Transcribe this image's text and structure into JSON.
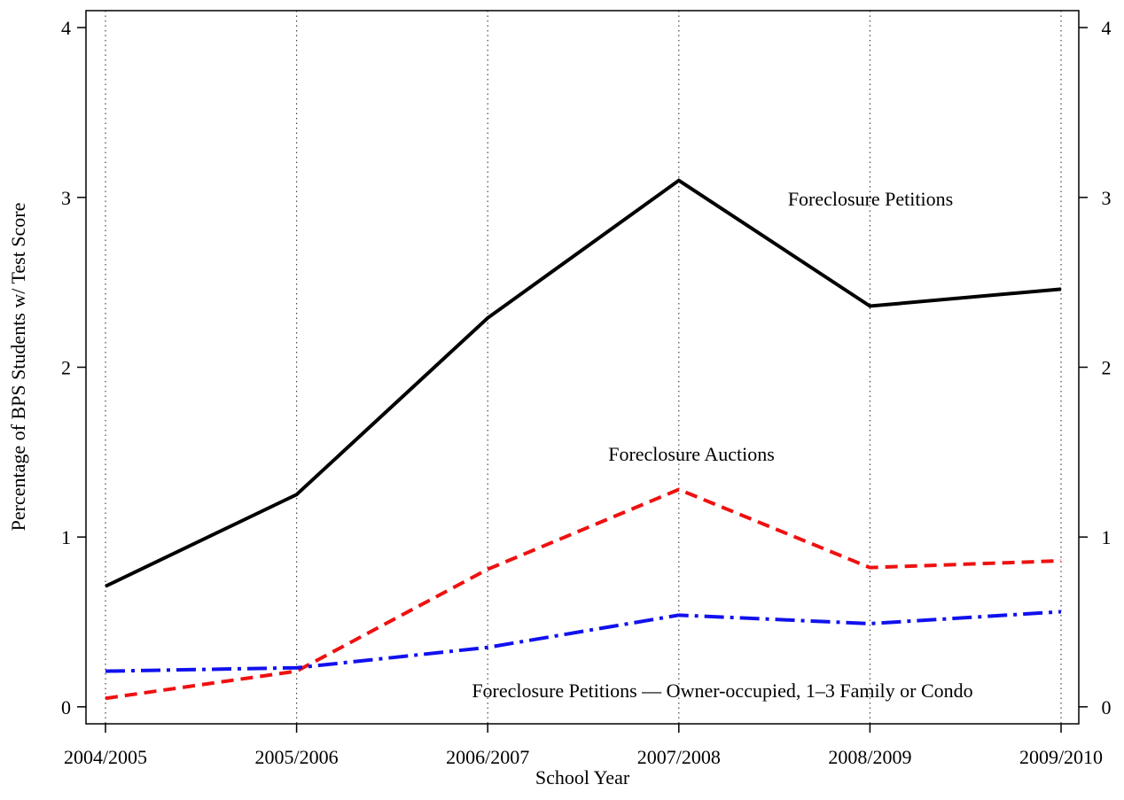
{
  "chart_data": {
    "type": "line",
    "xlabel": "School Year",
    "ylabel": "Percentage of BPS Students w/ Test Score",
    "categories": [
      "2004/2005",
      "2005/2006",
      "2006/2007",
      "2007/2008",
      "2008/2009",
      "2009/2010"
    ],
    "series": [
      {
        "name": "Foreclosure Petitions",
        "color": "#000000",
        "style": "solid",
        "values": [
          0.71,
          1.25,
          2.29,
          3.1,
          2.36,
          2.46
        ]
      },
      {
        "name": "Foreclosure Auctions",
        "color": "#ee1111",
        "style": "dashed",
        "values": [
          0.05,
          0.21,
          0.81,
          1.28,
          0.82,
          0.86
        ]
      },
      {
        "name": "Foreclosure Petitions — Owner-occupied, 1–3 Family or Condo",
        "color": "#1111ee",
        "style": "dashdot",
        "values": [
          0.21,
          0.23,
          0.35,
          0.54,
          0.49,
          0.56
        ]
      }
    ],
    "ylim": [
      -0.1,
      4.1
    ],
    "yticks": [
      0,
      1,
      2,
      3,
      4
    ],
    "y2lim": [
      -0.1,
      4.1
    ],
    "y2ticks": [
      0,
      1,
      2,
      3,
      4
    ],
    "xgrid": true
  }
}
